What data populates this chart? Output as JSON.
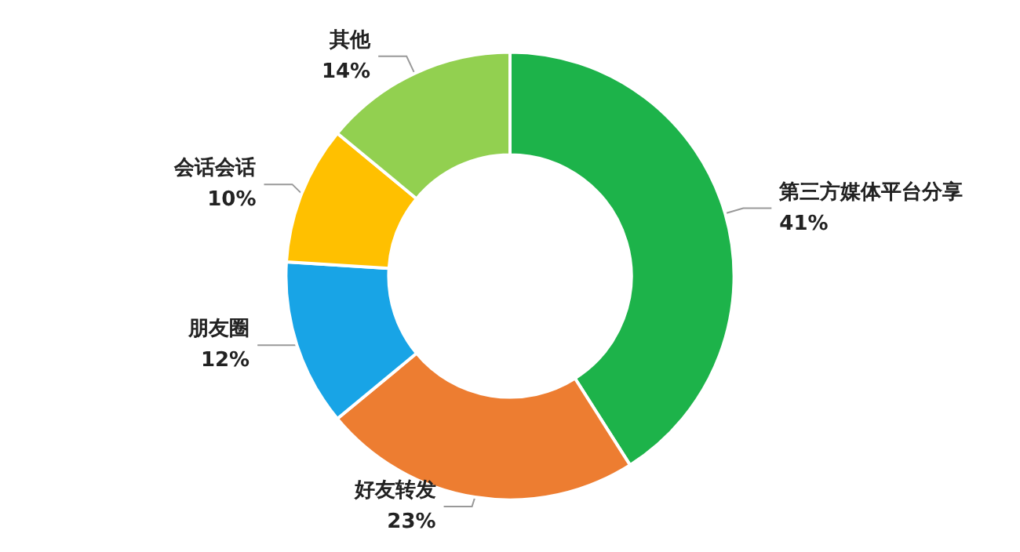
{
  "chart_data": {
    "type": "donut",
    "categories": [
      "第三方媒体平台分享",
      "好友转发",
      "朋友圈",
      "会话会话",
      "其他"
    ],
    "values": [
      41,
      23,
      12,
      10,
      14
    ],
    "value_labels": [
      "41%",
      "23%",
      "12%",
      "10%",
      "14%"
    ],
    "colors": [
      "#1db34a",
      "#ed7d31",
      "#18a4e6",
      "#ffc000",
      "#92d050"
    ],
    "legend": false
  }
}
